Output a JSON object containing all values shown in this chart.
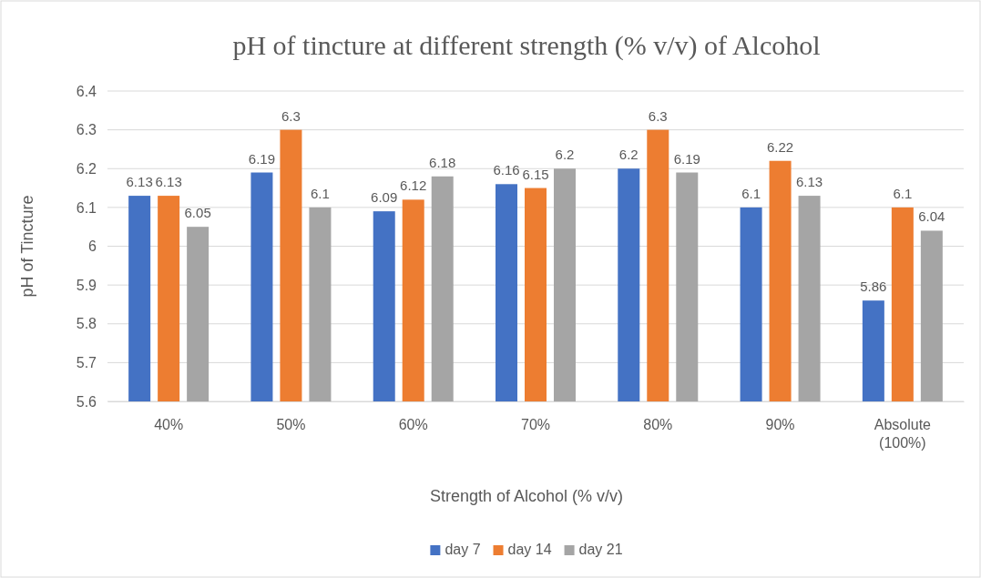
{
  "chart_data": {
    "type": "bar",
    "title": "pH of tincture at different strength (% v/v) of Alcohol",
    "xlabel": "Strength of Alcohol (% v/v)",
    "ylabel": "pH of Tincture",
    "categories": [
      "40%",
      "50%",
      "60%",
      "70%",
      "80%",
      "90%",
      "Absolute (100%)"
    ],
    "series": [
      {
        "name": "day 7",
        "color": "#4472c4",
        "values": [
          6.13,
          6.19,
          6.09,
          6.16,
          6.2,
          6.1,
          5.86
        ]
      },
      {
        "name": "day 14",
        "color": "#ed7d31",
        "values": [
          6.13,
          6.3,
          6.12,
          6.15,
          6.3,
          6.22,
          6.1
        ]
      },
      {
        "name": "day 21",
        "color": "#a5a5a5",
        "values": [
          6.05,
          6.1,
          6.18,
          6.2,
          6.19,
          6.13,
          6.04
        ]
      }
    ],
    "ylim": [
      5.6,
      6.4
    ],
    "yticks": [
      5.6,
      5.7,
      5.8,
      5.9,
      6,
      6.1,
      6.2,
      6.3,
      6.4
    ],
    "grid": "y",
    "legend": "bottom",
    "data_labels": true
  }
}
